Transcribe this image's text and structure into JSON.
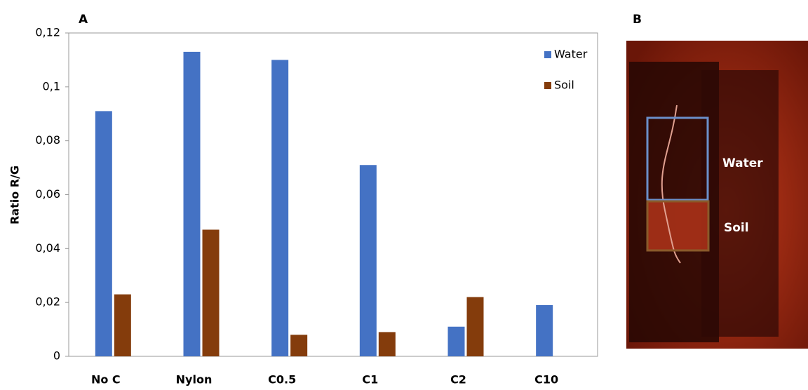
{
  "chart_data": {
    "type": "bar",
    "panel_label": "A",
    "ylabel": "Ratio R/G",
    "categories": [
      "No C",
      "Nylon",
      "C0.5",
      "C1",
      "C2",
      "C10"
    ],
    "series": [
      {
        "name": "Water",
        "color": "#4472c4",
        "values": [
          0.091,
          0.113,
          0.11,
          0.071,
          0.011,
          0.019
        ]
      },
      {
        "name": "Soil",
        "color": "#843c0c",
        "values": [
          0.023,
          0.047,
          0.008,
          0.009,
          0.022,
          0
        ]
      }
    ],
    "ylim": [
      0,
      0.12
    ],
    "yticks": [
      0,
      {
        "value": 0.02,
        "label": "0,02"
      },
      {
        "value": 0.04,
        "label": "0,04"
      },
      {
        "value": 0.06,
        "label": "0,06"
      },
      {
        "value": 0.08,
        "label": "0,08"
      },
      {
        "value": 0.1,
        "label": "0,1"
      },
      {
        "value": 0.12,
        "label": "0,12"
      }
    ],
    "grid": false,
    "legend": "upper right"
  },
  "panel_b": {
    "label": "B",
    "annotations": [
      "Water",
      "Soil"
    ]
  }
}
